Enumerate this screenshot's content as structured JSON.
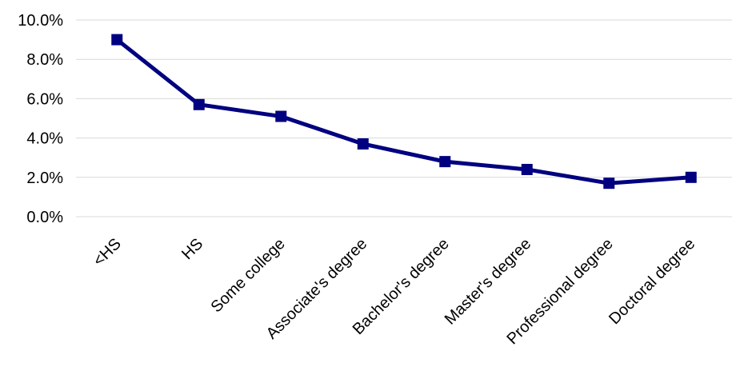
{
  "chart_data": {
    "type": "line",
    "title": "",
    "xlabel": "",
    "ylabel": "",
    "categories": [
      "<HS",
      "HS",
      "Some college",
      "Associate's degree",
      "Bachelor's degree",
      "Master's degree",
      "Professional degree",
      "Doctoral degree"
    ],
    "series": [
      {
        "values": [
          9.0,
          5.7,
          5.1,
          3.7,
          2.8,
          2.4,
          1.7,
          2.0
        ]
      }
    ],
    "ylim": [
      0,
      10
    ],
    "yticks": [
      "0.0%",
      "2.0%",
      "4.0%",
      "6.0%",
      "8.0%",
      "10.0%"
    ],
    "grid": true,
    "legend": "none",
    "colors": {
      "series": "#000080",
      "grid": "#d9d9d9",
      "text": "#000000"
    }
  }
}
